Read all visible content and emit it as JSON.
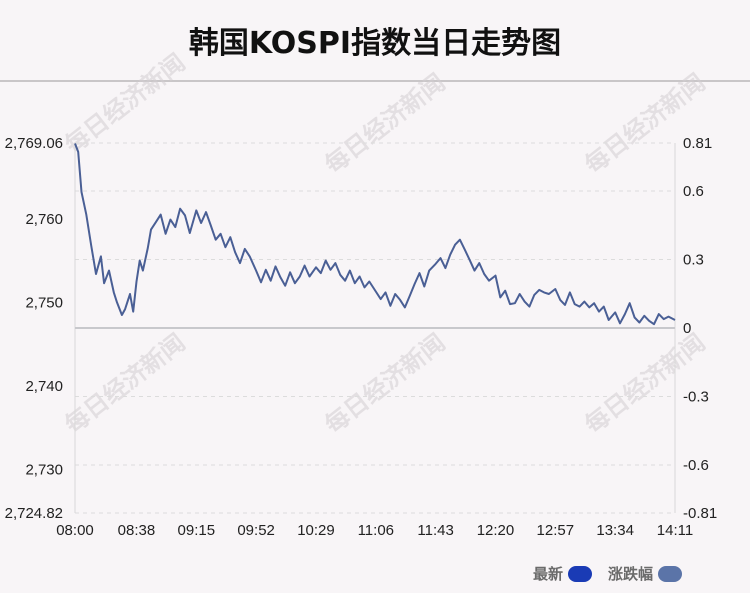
{
  "title": "韩国KOSPI指数当日走势图",
  "watermark": "每日经济新闻",
  "legend": [
    {
      "label": "最新",
      "color": "#1a3bb5"
    },
    {
      "label": "涨跌幅",
      "color": "#5b74a8"
    }
  ],
  "colors": {
    "line": "#4a5f95",
    "baseline": "#c8c8cc",
    "grid": "#dcdcdc"
  },
  "chart_data": {
    "type": "line",
    "title": "韩国KOSPI指数当日走势图",
    "y_left_ticks": [
      "2,769.06",
      "2,760",
      "2,750",
      "2,740",
      "2,730",
      "2,724.82"
    ],
    "y_right_ticks": [
      "0.81",
      "0.6",
      "0.3",
      "0",
      "-0.3",
      "-0.6",
      "-0.81"
    ],
    "x_ticks": [
      "08:00",
      "08:38",
      "09:15",
      "09:52",
      "10:29",
      "11:06",
      "11:43",
      "12:20",
      "12:57",
      "13:34",
      "14:11"
    ],
    "ylim": [
      2724.82,
      2769.06
    ],
    "ylim_right": [
      -0.81,
      0.81
    ],
    "baseline": 2746.94,
    "grid": true,
    "series": [
      {
        "x": [
          "08:00",
          "08:02",
          "08:04",
          "08:07",
          "08:10",
          "08:13",
          "08:16",
          "08:18",
          "08:21",
          "08:24",
          "08:26",
          "08:29",
          "08:31",
          "08:34",
          "08:36",
          "08:38",
          "08:40",
          "08:42",
          "08:45",
          "08:47",
          "08:50",
          "08:53",
          "08:56",
          "08:59",
          "09:02",
          "09:05",
          "09:08",
          "09:11",
          "09:15",
          "09:18",
          "09:21",
          "09:24",
          "09:27",
          "09:30",
          "09:33",
          "09:36",
          "09:39",
          "09:42",
          "09:45",
          "09:48",
          "09:52",
          "09:55",
          "09:58",
          "10:01",
          "10:04",
          "10:07",
          "10:10",
          "10:13",
          "10:16",
          "10:19",
          "10:22",
          "10:25",
          "10:29",
          "10:32",
          "10:35",
          "10:38",
          "10:41",
          "10:44",
          "10:47",
          "10:50",
          "10:53",
          "10:56",
          "10:59",
          "11:02",
          "11:06",
          "11:09",
          "11:12",
          "11:15",
          "11:18",
          "11:21",
          "11:24",
          "11:27",
          "11:30",
          "11:33",
          "11:36",
          "11:39",
          "11:43",
          "11:46",
          "11:49",
          "11:52",
          "11:55",
          "11:58",
          "12:01",
          "12:04",
          "12:07",
          "12:10",
          "12:13",
          "12:16",
          "12:20",
          "12:23",
          "12:26",
          "12:29",
          "12:32",
          "12:35",
          "12:38",
          "12:41",
          "12:44",
          "12:47",
          "12:50",
          "12:53",
          "12:57",
          "13:00",
          "13:03",
          "13:06",
          "13:09",
          "13:12",
          "13:15",
          "13:18",
          "13:21",
          "13:24",
          "13:27",
          "13:30",
          "13:34",
          "13:37",
          "13:40",
          "13:43",
          "13:46",
          "13:49",
          "13:52",
          "13:55",
          "13:58",
          "14:01",
          "14:04",
          "14:07",
          "14:11"
        ],
        "values": [
          2769.0,
          2768.0,
          2763.2,
          2760.5,
          2756.8,
          2753.4,
          2755.5,
          2752.3,
          2753.8,
          2751.2,
          2750.0,
          2748.5,
          2749.2,
          2751.0,
          2748.9,
          2752.5,
          2755.0,
          2753.8,
          2756.5,
          2758.7,
          2759.6,
          2760.5,
          2758.2,
          2759.9,
          2759.0,
          2761.2,
          2760.4,
          2758.3,
          2761.0,
          2759.5,
          2760.8,
          2759.2,
          2757.5,
          2758.2,
          2756.6,
          2757.8,
          2756.0,
          2754.7,
          2756.4,
          2755.5,
          2753.8,
          2752.4,
          2753.9,
          2752.6,
          2754.3,
          2753.0,
          2752.0,
          2753.6,
          2752.3,
          2753.1,
          2754.4,
          2753.1,
          2754.2,
          2753.5,
          2755.0,
          2753.9,
          2754.7,
          2753.3,
          2752.6,
          2753.8,
          2752.3,
          2753.1,
          2751.8,
          2752.5,
          2751.3,
          2750.4,
          2751.2,
          2749.6,
          2751.0,
          2750.3,
          2749.4,
          2750.8,
          2752.2,
          2753.5,
          2751.9,
          2753.8,
          2754.6,
          2755.3,
          2754.1,
          2755.7,
          2756.9,
          2757.5,
          2756.3,
          2755.1,
          2753.8,
          2754.7,
          2753.4,
          2752.6,
          2753.2,
          2750.6,
          2751.4,
          2749.8,
          2749.9,
          2751.0,
          2750.1,
          2749.5,
          2750.9,
          2751.5,
          2751.2,
          2751.0,
          2751.6,
          2750.3,
          2749.7,
          2751.2,
          2749.8,
          2749.5,
          2750.1,
          2749.4,
          2749.9,
          2748.9,
          2749.5,
          2747.9,
          2748.8,
          2747.5,
          2748.6,
          2749.9,
          2748.2,
          2747.6,
          2748.4,
          2747.8,
          2747.4,
          2748.6,
          2748.0,
          2748.3,
          2747.9
        ]
      }
    ]
  }
}
